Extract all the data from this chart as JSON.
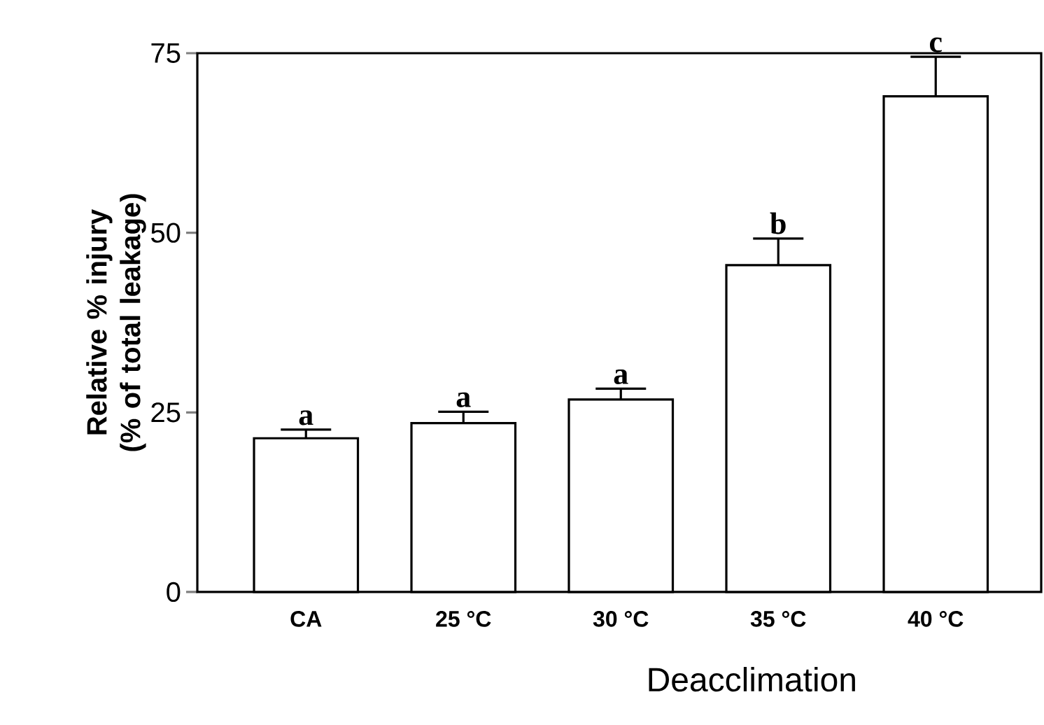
{
  "chart_data": {
    "type": "bar",
    "xlabel": "Deacclimation",
    "ylabel": "Relative % injury (% of total leakage)",
    "categories": [
      "CA",
      "25 °C",
      "30 °C",
      "35 °C",
      "40 °C"
    ],
    "values": [
      21.4,
      23.5,
      26.8,
      45.5,
      69.0
    ],
    "errors": [
      [
        21.4,
        22.6
      ],
      [
        23.5,
        25.1
      ],
      [
        26.8,
        28.3
      ],
      [
        45.5,
        49.2
      ],
      [
        69.0,
        74.5
      ]
    ],
    "color": "#ffffff",
    "annotations": [
      "a",
      "a",
      "a",
      "b",
      "c"
    ],
    "ylim": [
      0,
      75
    ],
    "yticks": [
      0,
      25,
      50,
      75
    ]
  }
}
